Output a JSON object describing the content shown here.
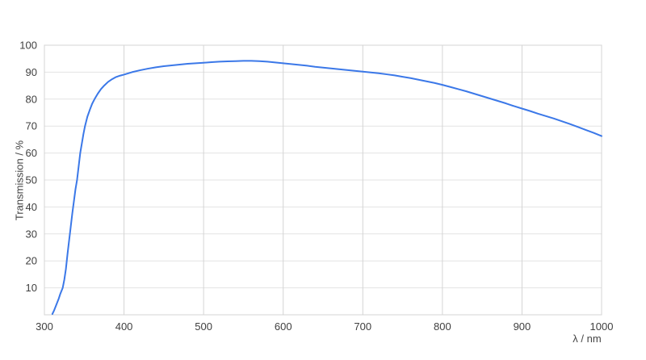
{
  "chart_data": {
    "type": "line",
    "title": "",
    "xlabel": "λ / nm",
    "ylabel": "Transmission / %",
    "xlim": [
      300,
      1000
    ],
    "ylim": [
      0,
      100
    ],
    "x_ticks": [
      300,
      400,
      500,
      600,
      700,
      800,
      900,
      1000
    ],
    "y_ticks": [
      10,
      20,
      30,
      40,
      50,
      60,
      70,
      80,
      90,
      100
    ],
    "grid": true,
    "legend_position": "none",
    "series": [
      {
        "name": "Transmission",
        "points": [
          [
            310,
            0.3
          ],
          [
            312,
            1.5
          ],
          [
            314,
            3
          ],
          [
            316,
            4.5
          ],
          [
            318,
            6
          ],
          [
            320,
            7.8
          ],
          [
            323,
            10
          ],
          [
            325,
            13
          ],
          [
            327,
            17
          ],
          [
            329,
            22.5
          ],
          [
            331,
            27.5
          ],
          [
            333,
            32.5
          ],
          [
            335,
            37.5
          ],
          [
            337,
            42
          ],
          [
            339,
            46.5
          ],
          [
            341,
            50
          ],
          [
            343,
            55
          ],
          [
            345,
            60
          ],
          [
            347,
            63.5
          ],
          [
            349,
            67
          ],
          [
            351,
            70
          ],
          [
            354,
            73.5
          ],
          [
            357,
            76
          ],
          [
            360,
            78.3
          ],
          [
            363,
            80
          ],
          [
            367,
            82
          ],
          [
            371,
            83.7
          ],
          [
            375,
            85
          ],
          [
            380,
            86.4
          ],
          [
            385,
            87.4
          ],
          [
            390,
            88.2
          ],
          [
            395,
            88.7
          ],
          [
            400,
            89.1
          ],
          [
            410,
            90
          ],
          [
            420,
            90.7
          ],
          [
            430,
            91.3
          ],
          [
            440,
            91.8
          ],
          [
            450,
            92.2
          ],
          [
            460,
            92.5
          ],
          [
            470,
            92.8
          ],
          [
            480,
            93.1
          ],
          [
            490,
            93.3
          ],
          [
            500,
            93.5
          ],
          [
            510,
            93.7
          ],
          [
            520,
            93.9
          ],
          [
            530,
            94
          ],
          [
            540,
            94.1
          ],
          [
            550,
            94.2
          ],
          [
            560,
            94.2
          ],
          [
            570,
            94.1
          ],
          [
            580,
            93.9
          ],
          [
            590,
            93.6
          ],
          [
            600,
            93.3
          ],
          [
            610,
            93
          ],
          [
            620,
            92.7
          ],
          [
            630,
            92.4
          ],
          [
            640,
            92
          ],
          [
            650,
            91.7
          ],
          [
            660,
            91.4
          ],
          [
            670,
            91.1
          ],
          [
            680,
            90.8
          ],
          [
            690,
            90.5
          ],
          [
            700,
            90.2
          ],
          [
            710,
            89.9
          ],
          [
            720,
            89.6
          ],
          [
            730,
            89.2
          ],
          [
            740,
            88.8
          ],
          [
            750,
            88.3
          ],
          [
            760,
            87.8
          ],
          [
            770,
            87.2
          ],
          [
            780,
            86.6
          ],
          [
            790,
            86
          ],
          [
            800,
            85.3
          ],
          [
            810,
            84.5
          ],
          [
            820,
            83.7
          ],
          [
            830,
            82.9
          ],
          [
            840,
            82
          ],
          [
            850,
            81.1
          ],
          [
            860,
            80.2
          ],
          [
            870,
            79.3
          ],
          [
            880,
            78.4
          ],
          [
            890,
            77.4
          ],
          [
            900,
            76.5
          ],
          [
            910,
            75.6
          ],
          [
            920,
            74.6
          ],
          [
            930,
            73.7
          ],
          [
            940,
            72.8
          ],
          [
            950,
            71.8
          ],
          [
            960,
            70.8
          ],
          [
            970,
            69.7
          ],
          [
            980,
            68.6
          ],
          [
            990,
            67.5
          ],
          [
            1000,
            66.3
          ]
        ]
      }
    ]
  },
  "colors": {
    "line": "#3b78e8",
    "frame": "#d4d4d4",
    "h_grid": "#e3e3e3",
    "v_grid": "#d4d4d4",
    "tick_text": "#404040",
    "background": "#ffffff"
  }
}
